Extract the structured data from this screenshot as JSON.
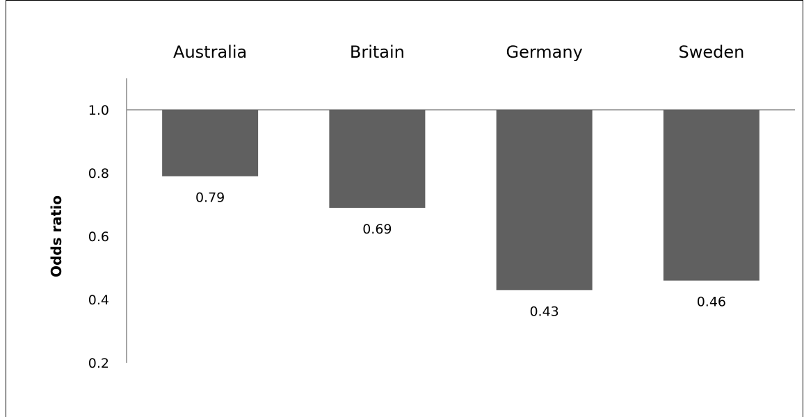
{
  "chart_data": {
    "type": "bar",
    "title": "",
    "categories": [
      "Australia",
      "Britain",
      "Germany",
      "Sweden"
    ],
    "values": [
      0.79,
      0.69,
      0.43,
      0.46
    ],
    "data_labels": [
      "0.79",
      "0.69",
      "0.43",
      "0.46"
    ],
    "baseline": 1.0,
    "xlabel": "",
    "ylabel": "Odds ratio",
    "ylim": [
      0.2,
      1.1
    ],
    "yticks": [
      1.0,
      0.8,
      0.6,
      0.4,
      0.2
    ],
    "ytick_labels": [
      "1.0",
      "0.8",
      "0.6",
      "0.4",
      "0.2"
    ],
    "category_axis_position": "top",
    "grid": false,
    "legend": "none",
    "bar_color": "#606060",
    "axis_color": "#898989"
  }
}
